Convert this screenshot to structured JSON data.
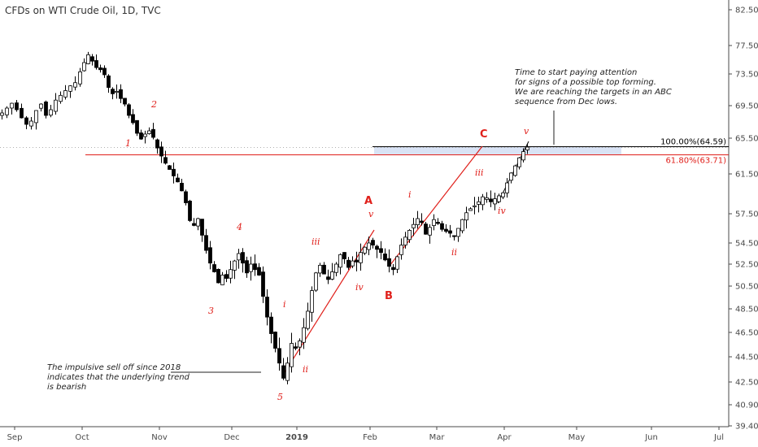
{
  "chart_data": {
    "type": "candlestick",
    "title": "CFDs on WTI Crude Oil, 1D, TVC",
    "ylim": [
      39.4,
      83.5
    ],
    "y_ticks": [
      "82.50",
      "77.50",
      "73.50",
      "69.50",
      "65.50",
      "61.50",
      "57.50",
      "54.50",
      "52.50",
      "50.50",
      "48.50",
      "46.50",
      "44.50",
      "42.50",
      "40.90",
      "39.40"
    ],
    "x_ticks": [
      "Sep",
      "Oct",
      "Nov",
      "Dec",
      "2019",
      "Feb",
      "Mar",
      "Apr",
      "May",
      "Jun",
      "Jul"
    ],
    "last_price_label": "",
    "fib_levels": [
      {
        "label": "100.00%(64.59)",
        "value": 64.59,
        "color": "#000000"
      },
      {
        "label": "61.80%(63.71)",
        "value": 63.71,
        "color": "#e0201b"
      }
    ],
    "wave_labels": [
      {
        "text": "1",
        "style": "minor"
      },
      {
        "text": "2",
        "style": "minor"
      },
      {
        "text": "3",
        "style": "minor"
      },
      {
        "text": "4",
        "style": "minor"
      },
      {
        "text": "5",
        "style": "minor"
      },
      {
        "text": "i",
        "style": "minor"
      },
      {
        "text": "ii",
        "style": "minor"
      },
      {
        "text": "iii",
        "style": "minor"
      },
      {
        "text": "iv",
        "style": "minor"
      },
      {
        "text": "v",
        "style": "minor"
      },
      {
        "text": "A",
        "style": "major"
      },
      {
        "text": "B",
        "style": "major"
      },
      {
        "text": "i",
        "style": "minor"
      },
      {
        "text": "ii",
        "style": "minor"
      },
      {
        "text": "C",
        "style": "major"
      },
      {
        "text": "iii",
        "style": "minor"
      },
      {
        "text": "iv",
        "style": "minor"
      },
      {
        "text": "v",
        "style": "minor"
      }
    ],
    "annotations": {
      "top_note": [
        "Time to start paying attention",
        "for signs of a possible top forming.",
        "We are reaching the targets in an ABC",
        "sequence from Dec lows."
      ],
      "bottom_note": [
        "The impulsive sell off since 2018",
        "indicates that the underlying trend",
        "is bearish"
      ]
    },
    "price_path": [
      [
        0,
        68.6
      ],
      [
        6,
        69.2
      ],
      [
        12,
        69.8
      ],
      [
        18,
        69.0
      ],
      [
        24,
        68.0
      ],
      [
        30,
        67.2
      ],
      [
        36,
        67.6
      ],
      [
        42,
        68.9
      ],
      [
        48,
        69.7
      ],
      [
        54,
        68.3
      ],
      [
        60,
        69.0
      ],
      [
        66,
        70.2
      ],
      [
        72,
        70.8
      ],
      [
        78,
        71.4
      ],
      [
        84,
        72.0
      ],
      [
        90,
        72.4
      ],
      [
        96,
        73.8
      ],
      [
        101,
        75.1
      ],
      [
        106,
        76.2
      ],
      [
        111,
        75.3
      ],
      [
        116,
        74.4
      ],
      [
        121,
        74.1
      ],
      [
        126,
        73.4
      ],
      [
        131,
        71.8
      ],
      [
        136,
        71.0
      ],
      [
        141,
        71.3
      ],
      [
        146,
        70.4
      ],
      [
        151,
        69.7
      ],
      [
        156,
        68.3
      ],
      [
        161,
        67.4
      ],
      [
        166,
        66.1
      ],
      [
        171,
        65.4
      ],
      [
        176,
        66.0
      ],
      [
        181,
        66.4
      ],
      [
        186,
        65.6
      ],
      [
        191,
        64.4
      ],
      [
        196,
        63.5
      ],
      [
        201,
        62.7
      ],
      [
        206,
        62.0
      ],
      [
        211,
        61.3
      ],
      [
        216,
        60.7
      ],
      [
        221,
        59.8
      ],
      [
        226,
        58.6
      ],
      [
        231,
        56.8
      ],
      [
        236,
        56.3
      ],
      [
        241,
        57.0
      ],
      [
        246,
        55.3
      ],
      [
        251,
        53.8
      ],
      [
        256,
        52.6
      ],
      [
        261,
        51.8
      ],
      [
        266,
        50.8
      ],
      [
        271,
        51.5
      ],
      [
        276,
        51.2
      ],
      [
        281,
        52.0
      ],
      [
        286,
        52.8
      ],
      [
        291,
        53.5
      ],
      [
        296,
        52.6
      ],
      [
        301,
        51.7
      ],
      [
        306,
        52.5
      ],
      [
        311,
        52.0
      ],
      [
        316,
        51.5
      ],
      [
        321,
        49.6
      ],
      [
        326,
        47.8
      ],
      [
        331,
        46.4
      ],
      [
        336,
        45.2
      ],
      [
        341,
        44.0
      ],
      [
        346,
        42.8
      ],
      [
        351,
        44.0
      ],
      [
        356,
        45.6
      ],
      [
        361,
        45.2
      ],
      [
        366,
        45.8
      ],
      [
        371,
        46.9
      ],
      [
        376,
        48.3
      ],
      [
        381,
        50.1
      ],
      [
        386,
        51.7
      ],
      [
        391,
        52.4
      ],
      [
        396,
        51.6
      ],
      [
        401,
        51.1
      ],
      [
        406,
        51.8
      ],
      [
        411,
        52.5
      ],
      [
        416,
        53.4
      ],
      [
        421,
        53.0
      ],
      [
        426,
        52.2
      ],
      [
        431,
        52.8
      ],
      [
        436,
        52.7
      ],
      [
        441,
        53.6
      ],
      [
        446,
        54.1
      ],
      [
        451,
        54.5
      ],
      [
        456,
        54.3
      ],
      [
        461,
        53.9
      ],
      [
        466,
        53.6
      ],
      [
        471,
        52.9
      ],
      [
        476,
        52.3
      ],
      [
        481,
        52.0
      ],
      [
        486,
        53.2
      ],
      [
        491,
        54.3
      ],
      [
        496,
        55.1
      ],
      [
        501,
        55.8
      ],
      [
        506,
        56.4
      ],
      [
        511,
        57.0
      ],
      [
        516,
        56.6
      ],
      [
        521,
        55.4
      ],
      [
        526,
        56.1
      ],
      [
        531,
        56.9
      ],
      [
        536,
        56.5
      ],
      [
        541,
        55.9
      ],
      [
        546,
        55.7
      ],
      [
        551,
        55.5
      ],
      [
        556,
        55.2
      ],
      [
        561,
        56.0
      ],
      [
        566,
        56.9
      ],
      [
        571,
        57.6
      ],
      [
        576,
        58.0
      ],
      [
        581,
        58.3
      ],
      [
        586,
        58.7
      ],
      [
        591,
        59.2
      ],
      [
        596,
        59.1
      ],
      [
        601,
        58.7
      ],
      [
        606,
        59.0
      ],
      [
        611,
        59.3
      ],
      [
        616,
        59.6
      ],
      [
        621,
        60.6
      ],
      [
        626,
        61.6
      ],
      [
        631,
        62.4
      ],
      [
        636,
        63.3
      ],
      [
        641,
        64.0
      ],
      [
        646,
        64.5
      ]
    ]
  }
}
